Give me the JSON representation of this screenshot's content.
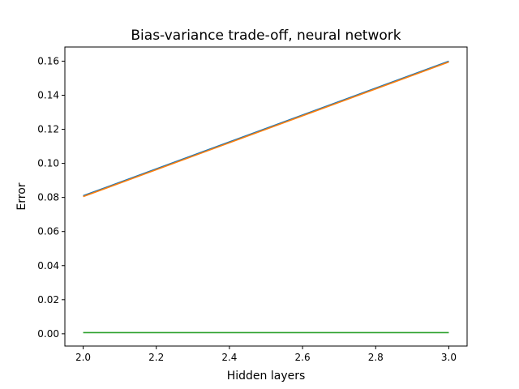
{
  "chart_data": {
    "type": "line",
    "title": "Bias-variance trade-off, neural network",
    "xlabel": "Hidden layers",
    "ylabel": "Error",
    "xlim": [
      1.95,
      3.05
    ],
    "ylim": [
      -0.0072,
      0.1683
    ],
    "xticks": [
      "2.0",
      "2.2",
      "2.4",
      "2.6",
      "2.8",
      "3.0"
    ],
    "yticks": [
      "0.00",
      "0.02",
      "0.04",
      "0.06",
      "0.08",
      "0.10",
      "0.12",
      "0.14",
      "0.16"
    ],
    "grid": false,
    "x": [
      2.0,
      3.0
    ],
    "series": [
      {
        "color": "#1f77b4",
        "values": [
          0.081,
          0.16
        ]
      },
      {
        "color": "#ff7f0e",
        "values": [
          0.0805,
          0.1595
        ]
      },
      {
        "color": "#2ca02c",
        "values": [
          0.0007,
          0.0007
        ]
      }
    ]
  }
}
